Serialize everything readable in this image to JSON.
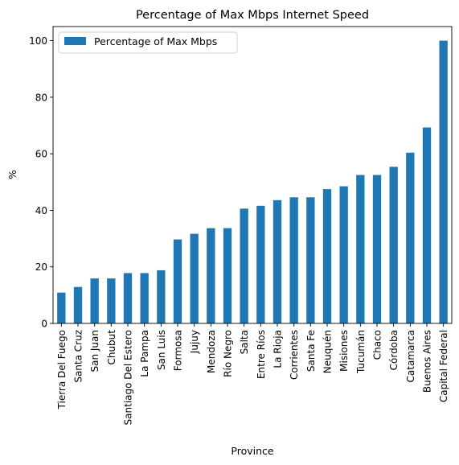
{
  "chart_data": {
    "type": "bar",
    "title": "Percentage of Max Mbps Internet Speed",
    "xlabel": "Province",
    "ylabel": "%",
    "ylim": [
      0,
      105
    ],
    "yticks": [
      0,
      20,
      40,
      60,
      80,
      100
    ],
    "grid": false,
    "legend_position": "top-left",
    "bar_color": "#1f77b4",
    "categories": [
      "Tierra Del Fuego",
      "Santa Cruz",
      "San Juan",
      "Chubut",
      "Santiago Del Estero",
      "La Pampa",
      "San Luis",
      "Formosa",
      "Jujuy",
      "Mendoza",
      "Río Negro",
      "Salta",
      "Entre Ríos",
      "La Rioja",
      "Corrientes",
      "Santa Fe",
      "Neuquén",
      "Misiones",
      "Tucumán",
      "Chaco",
      "Córdoba",
      "Catamarca",
      "Buenos Aires",
      "Capital Federal"
    ],
    "series": [
      {
        "name": "Percentage of Max Mbps",
        "values": [
          10.9,
          12.9,
          15.9,
          15.9,
          17.8,
          17.8,
          18.8,
          29.7,
          31.7,
          33.7,
          33.7,
          40.6,
          41.6,
          43.6,
          44.6,
          44.6,
          47.5,
          48.5,
          52.5,
          52.5,
          55.4,
          60.4,
          69.3,
          100
        ]
      }
    ]
  }
}
